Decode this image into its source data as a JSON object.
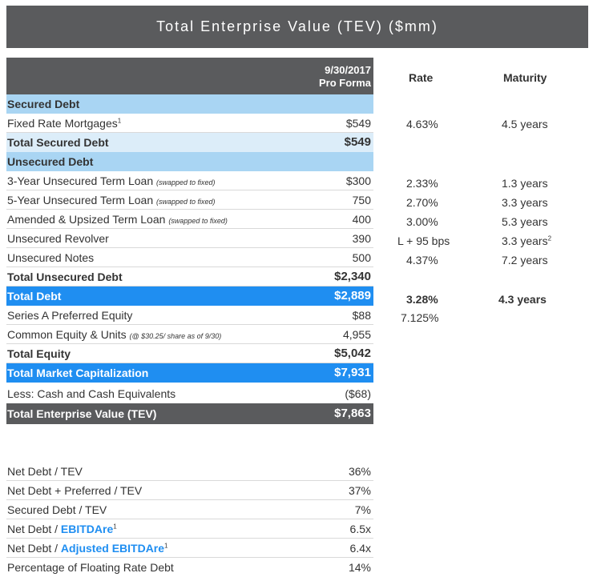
{
  "title": "Total Enterprise Value (TEV) ($mm)",
  "header": {
    "col_date": "9/30/2017",
    "col_proforma": "Pro Forma",
    "rate": "Rate",
    "maturity": "Maturity"
  },
  "rows": {
    "secured_debt": {
      "label": "Secured Debt"
    },
    "fixed_rate_mortgages": {
      "label": "Fixed Rate Mortgages",
      "sup": "1",
      "value": "$549",
      "rate": "4.63%",
      "maturity": "4.5 years"
    },
    "total_secured_debt": {
      "label": "Total Secured Debt",
      "value": "$549"
    },
    "unsecured_debt": {
      "label": "Unsecured Debt"
    },
    "term_loan_3yr": {
      "label": "3-Year Unsecured Term Loan",
      "note": "(swapped to fixed)",
      "value": "$300",
      "rate": "2.33%",
      "maturity": "1.3 years"
    },
    "term_loan_5yr": {
      "label": "5-Year Unsecured Term Loan",
      "note": "(swapped to fixed)",
      "value": "750",
      "rate": "2.70%",
      "maturity": "3.3 years"
    },
    "amended_term_loan": {
      "label": "Amended & Upsized Term Loan",
      "note": "(swapped to fixed)",
      "value": "400",
      "rate": "3.00%",
      "maturity": "5.3 years"
    },
    "unsecured_revolver": {
      "label": "Unsecured Revolver",
      "value": "390",
      "rate": "L + 95 bps",
      "maturity": "3.3 years",
      "maturity_sup": "2"
    },
    "unsecured_notes": {
      "label": "Unsecured Notes",
      "value": "500",
      "rate": "4.37%",
      "maturity": "7.2 years"
    },
    "total_unsecured_debt": {
      "label": "Total Unsecured Debt",
      "value": "$2,340"
    },
    "total_debt": {
      "label": "Total Debt",
      "value": "$2,889",
      "rate": "3.28%",
      "maturity": "4.3 years"
    },
    "series_a_preferred": {
      "label": "Series A Preferred Equity",
      "value": "$88",
      "rate": "7.125%"
    },
    "common_equity": {
      "label": "Common Equity & Units",
      "note": "(@ $30.25/ share as of 9/30)",
      "value": "4,955"
    },
    "total_equity": {
      "label": "Total Equity",
      "value": "$5,042"
    },
    "total_market_cap": {
      "label": "Total Market Capitalization",
      "value": "$7,931"
    },
    "less_cash": {
      "label": "Less: Cash and Cash Equivalents",
      "value": "($68)"
    },
    "tev": {
      "label": "Total Enterprise Value (TEV)",
      "value": "$7,863"
    }
  },
  "ratios": {
    "net_debt_tev": {
      "label": "Net Debt / TEV",
      "value": "36%"
    },
    "net_debt_pref_tev": {
      "label": "Net Debt + Preferred / TEV",
      "value": "37%"
    },
    "secured_debt_tev": {
      "label": "Secured Debt / TEV",
      "value": "7%"
    },
    "net_debt_ebitdare": {
      "label_prefix": "Net Debt / ",
      "label_blue": "EBITDAre",
      "sup": "1",
      "value": "6.5x"
    },
    "net_debt_adj_ebitdare": {
      "label_prefix": "Net Debt / ",
      "label_blue": "Adjusted EBITDAre",
      "sup": "1",
      "value": "6.4x"
    },
    "floating_rate_pct": {
      "label": "Percentage of Floating Rate Debt",
      "value": "14%"
    }
  },
  "colors": {
    "header_gray": "#5a5b5d",
    "section_blue": "#a9d5f3",
    "subtotal_blue": "#dcedf9",
    "highlight_blue": "#1f8ef1"
  }
}
